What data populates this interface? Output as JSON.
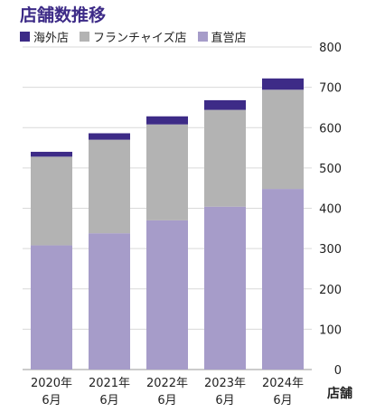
{
  "chart_data": {
    "type": "bar",
    "stacked": true,
    "title": "店舗数推移",
    "categories": [
      [
        "2020年",
        "6月"
      ],
      [
        "2021年",
        "6月"
      ],
      [
        "2022年",
        "6月"
      ],
      [
        "2023年",
        "6月"
      ],
      [
        "2024年",
        "6月"
      ]
    ],
    "series": [
      {
        "name": "直営店",
        "color": "#a69cc9",
        "values": [
          308,
          338,
          370,
          404,
          448
        ]
      },
      {
        "name": "フランチャイズ店",
        "color": "#b3b3b3",
        "values": [
          220,
          232,
          238,
          240,
          246
        ]
      },
      {
        "name": "海外店",
        "color": "#3d2b87",
        "values": [
          12,
          16,
          20,
          24,
          28
        ]
      }
    ],
    "legend_order": [
      "海外店",
      "フランチャイズ店",
      "直営店"
    ],
    "ylim": [
      0,
      800
    ],
    "yticks": [
      0,
      100,
      200,
      300,
      400,
      500,
      600,
      700,
      800
    ],
    "ylabel": "店舗",
    "grid": true,
    "legend_position": "top-left"
  }
}
